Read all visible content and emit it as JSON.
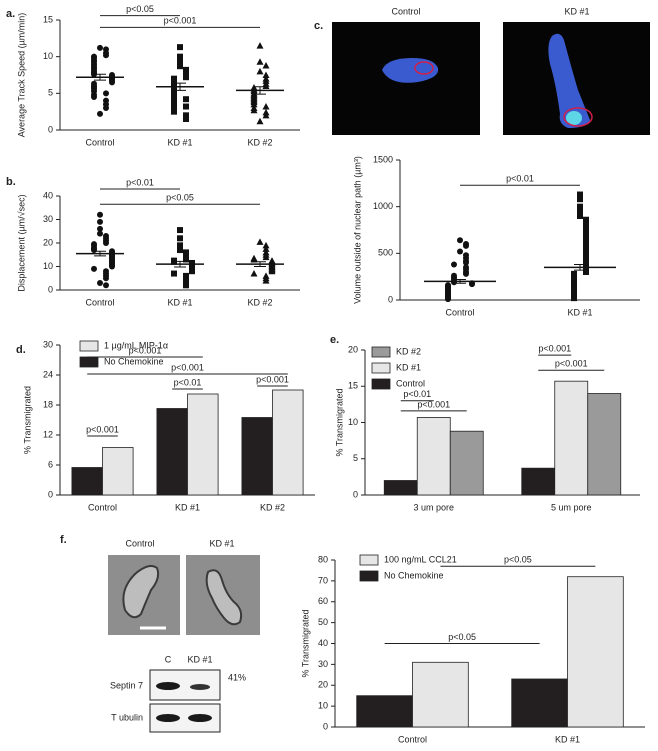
{
  "chart_data": [
    {
      "type": "dot",
      "panel": "a.",
      "ylabel": "Average Track Speed (µm/min)",
      "categories": [
        "Control",
        "KD #1",
        "KD #2"
      ],
      "markers": [
        "circle",
        "square",
        "triangle"
      ],
      "color": "#111111",
      "values": [
        [
          11.2,
          11,
          10.5,
          10.2,
          10,
          9.8,
          9.5,
          9.3,
          9,
          8.8,
          8.5,
          8.3,
          8,
          7.8,
          7.6,
          7.5,
          7.3,
          7.2,
          7,
          6.9,
          6.7,
          6.5,
          6.3,
          6,
          5.8,
          5.6,
          5.3,
          5,
          4.8,
          4.5,
          4,
          3.5,
          3,
          2.2
        ],
        [
          11.3,
          10,
          9.3,
          8.7,
          8.2,
          7.8,
          7.5,
          7.2,
          7,
          6.7,
          6.5,
          6.2,
          6,
          5.8,
          5.6,
          5.4,
          5.2,
          5,
          4.8,
          4.5,
          4.2,
          4,
          3.8,
          3.5,
          3.2,
          3,
          2.8,
          2.5,
          2,
          1.5
        ],
        [
          11.5,
          9.3,
          8.8,
          8,
          7.5,
          7,
          6.7,
          6.3,
          6,
          5.8,
          5.5,
          5.3,
          5,
          4.8,
          4.6,
          4.4,
          4.2,
          4,
          3.8,
          3.5,
          3.2,
          3,
          2.7,
          2.4,
          2,
          1.2
        ]
      ],
      "means": [
        7.2,
        5.9,
        5.4
      ],
      "errors": [
        0.4,
        0.5,
        0.5
      ],
      "ylim": [
        0,
        15
      ],
      "yticks": [
        0,
        5,
        10,
        15
      ],
      "annotations": [
        "p<0.05",
        "p<0.001"
      ]
    },
    {
      "type": "dot",
      "panel": "b.",
      "ylabel": "Displacement (µm/√sec)",
      "categories": [
        "Control",
        "KD #1",
        "KD #2"
      ],
      "markers": [
        "circle",
        "square",
        "triangle"
      ],
      "color": "#111111",
      "values": [
        [
          32,
          29,
          26,
          24,
          23,
          22,
          21,
          20,
          19.5,
          19,
          18,
          17.5,
          17,
          16.5,
          16,
          15.5,
          15,
          14.5,
          14,
          13.5,
          13,
          12.5,
          12,
          11.5,
          11,
          10.5,
          10,
          9,
          8,
          7,
          6,
          5,
          3,
          2
        ],
        [
          25.5,
          22,
          19,
          17,
          16,
          15,
          14,
          13,
          12.5,
          12,
          11.5,
          11,
          10.5,
          10,
          9.5,
          9,
          8.5,
          8,
          7,
          6,
          5,
          4,
          3,
          2
        ],
        [
          20.5,
          19,
          17.5,
          16,
          15,
          14,
          13.5,
          13,
          12.5,
          12,
          11.5,
          11,
          10.5,
          10,
          9.5,
          9,
          8.5,
          8,
          7,
          6,
          5,
          4
        ]
      ],
      "means": [
        15.5,
        11,
        11
      ],
      "errors": [
        1,
        1.2,
        1
      ],
      "ylim": [
        0,
        40
      ],
      "yticks": [
        0,
        10,
        20,
        30,
        40
      ],
      "annotations": [
        "p<0.01",
        "p<0.05"
      ]
    },
    {
      "type": "dot",
      "panel": "c.",
      "ylabel": "Volume outside of nuclear path (µm³)",
      "categories": [
        "Control",
        "KD #1"
      ],
      "markers": [
        "circle",
        "square"
      ],
      "color": "#111111",
      "values": [
        [
          640,
          600,
          580,
          520,
          480,
          450,
          420,
          400,
          380,
          350,
          330,
          300,
          280,
          260,
          240,
          220,
          200,
          190,
          180,
          170,
          160,
          150,
          140,
          130,
          120,
          110,
          100,
          90,
          80,
          70,
          60,
          50,
          40,
          30,
          20,
          10
        ],
        [
          1130,
          1080,
          1000,
          950,
          900,
          860,
          820,
          780,
          740,
          700,
          660,
          620,
          580,
          540,
          500,
          470,
          440,
          410,
          380,
          350,
          320,
          300,
          280,
          260,
          240,
          220,
          200,
          180,
          160,
          140,
          120,
          100,
          80,
          60,
          40,
          20
        ]
      ],
      "means": [
        200,
        350
      ],
      "errors": [
        20,
        30
      ],
      "ylim": [
        0,
        1500
      ],
      "yticks": [
        0,
        500,
        1000,
        1500
      ],
      "annotations": [
        "p<0.01"
      ]
    },
    {
      "type": "bar",
      "panel": "d.",
      "ylabel": "% Transmigrated",
      "categories": [
        "Control",
        "KD #1",
        "KD #2"
      ],
      "series": [
        {
          "name": "No Chemokine",
          "color": "#231f20",
          "values": [
            5.5,
            17.3,
            15.5
          ]
        },
        {
          "name": "1 µg/mL MIP-1α",
          "color": "#e6e6e6",
          "values": [
            9.5,
            20.2,
            21
          ]
        }
      ],
      "ylim": [
        0,
        30
      ],
      "yticks": [
        0,
        6,
        12,
        18,
        24,
        30
      ],
      "annotations": [
        "p<0.001",
        "p<0.001",
        "p<0.01",
        "p<0.001",
        "p<0.001"
      ]
    },
    {
      "type": "bar",
      "panel": "e.",
      "ylabel": "% Transmigrated",
      "categories": [
        "3 um pore",
        "5 um pore"
      ],
      "series": [
        {
          "name": "Control",
          "color": "#231f20",
          "values": [
            2,
            3.7
          ]
        },
        {
          "name": "KD #1",
          "color": "#e6e6e6",
          "values": [
            10.7,
            15.7
          ]
        },
        {
          "name": "KD #2",
          "color": "#9a9a9a",
          "values": [
            8.8,
            14
          ]
        }
      ],
      "ylim": [
        0,
        20
      ],
      "yticks": [
        0,
        5,
        10,
        15,
        20
      ],
      "annotations": [
        "p<0.01",
        "p<0.001",
        "p<0.001",
        "p<0.001"
      ]
    },
    {
      "type": "bar",
      "panel": "f.",
      "ylabel": "% Transmigrated",
      "categories": [
        "Control",
        "KD #1"
      ],
      "series": [
        {
          "name": "No Chemokine",
          "color": "#231f20",
          "values": [
            15,
            23
          ]
        },
        {
          "name": "100 ng/mL CCL21",
          "color": "#e6e6e6",
          "values": [
            31,
            72
          ]
        }
      ],
      "ylim": [
        0,
        80
      ],
      "yticks": [
        0,
        10,
        20,
        30,
        40,
        50,
        60,
        70,
        80
      ],
      "annotations": [
        "p<0.05",
        "p<0.05"
      ]
    }
  ],
  "panels": {
    "c": {
      "image_titles": [
        "Control",
        "KD #1"
      ]
    },
    "f": {
      "image_titles": [
        "Control",
        "KD #1"
      ],
      "blot": {
        "lanes": [
          "C",
          "KD #1"
        ],
        "rows": [
          "Septin 7",
          "T ubulin"
        ],
        "note": "41%"
      }
    }
  }
}
